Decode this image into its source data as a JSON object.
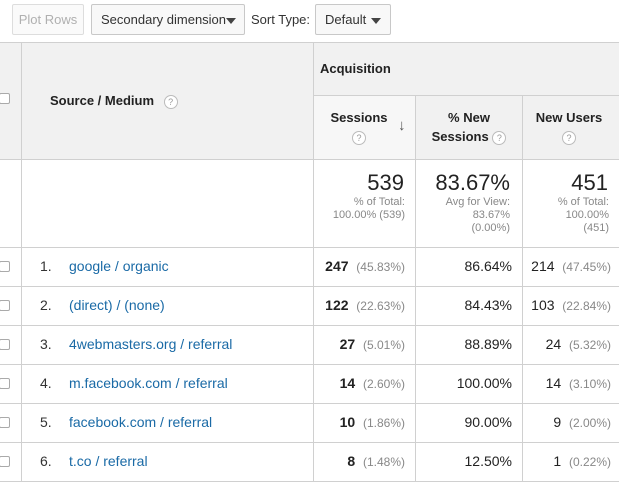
{
  "toolbar": {
    "plot_rows": "Plot Rows",
    "secondary_dimension": "Secondary dimension",
    "sort_type_label": "Sort Type:",
    "sort_type_value": "Default"
  },
  "table": {
    "dimension_header": "Source / Medium",
    "group_header": "Acquisition",
    "col_sessions": "Sessions",
    "col_new_sessions_1": "% New",
    "col_new_sessions_2": "Sessions",
    "col_new_users": "New Users",
    "help_glyph": "?",
    "sort_arrow": "↓",
    "summary": {
      "sessions_value": "539",
      "sessions_sub1": "% of Total:",
      "sessions_sub2": "100.00% (539)",
      "new_sessions_value": "83.67%",
      "new_sessions_sub1": "Avg for View:",
      "new_sessions_sub2": "83.67%",
      "new_sessions_sub3": "(0.00%)",
      "new_users_value": "451",
      "new_users_sub1": "% of Total:",
      "new_users_sub2": "100.00%",
      "new_users_sub3": "(451)"
    },
    "rows": [
      {
        "num": "1.",
        "source": "google / organic",
        "sessions": "247",
        "sessions_pct": "(45.83%)",
        "new_sessions": "86.64%",
        "new_users": "214",
        "new_users_pct": "(47.45%)"
      },
      {
        "num": "2.",
        "source": "(direct) / (none)",
        "sessions": "122",
        "sessions_pct": "(22.63%)",
        "new_sessions": "84.43%",
        "new_users": "103",
        "new_users_pct": "(22.84%)"
      },
      {
        "num": "3.",
        "source": "4webmasters.org / referral",
        "sessions": "27",
        "sessions_pct": "(5.01%)",
        "new_sessions": "88.89%",
        "new_users": "24",
        "new_users_pct": "(5.32%)"
      },
      {
        "num": "4.",
        "source": "m.facebook.com / referral",
        "sessions": "14",
        "sessions_pct": "(2.60%)",
        "new_sessions": "100.00%",
        "new_users": "14",
        "new_users_pct": "(3.10%)"
      },
      {
        "num": "5.",
        "source": "facebook.com / referral",
        "sessions": "10",
        "sessions_pct": "(1.86%)",
        "new_sessions": "90.00%",
        "new_users": "9",
        "new_users_pct": "(2.00%)"
      },
      {
        "num": "6.",
        "source": "t.co / referral",
        "sessions": "8",
        "sessions_pct": "(1.48%)",
        "new_sessions": "12.50%",
        "new_users": "1",
        "new_users_pct": "(0.22%)"
      }
    ]
  }
}
